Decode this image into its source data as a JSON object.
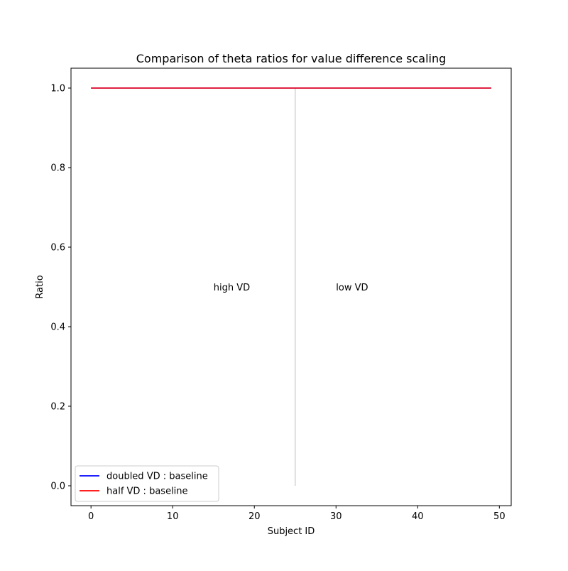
{
  "chart_data": {
    "type": "line",
    "title": "Comparison of theta ratios for value difference scaling",
    "xlabel": "Subject ID",
    "ylabel": "Ratio",
    "xlim": [
      -2.45,
      51.45
    ],
    "ylim": [
      -0.05,
      1.05
    ],
    "xticks": [
      0,
      10,
      20,
      30,
      40,
      50
    ],
    "yticks": [
      0.0,
      0.2,
      0.4,
      0.6,
      0.8,
      1.0
    ],
    "xtick_labels": [
      "0",
      "10",
      "20",
      "30",
      "40",
      "50"
    ],
    "ytick_labels": [
      "0.0",
      "0.2",
      "0.4",
      "0.6",
      "0.8",
      "1.0"
    ],
    "grid": false,
    "legend_position": "lower-left",
    "series": [
      {
        "name": "doubled VD : baseline",
        "color": "#0000ff",
        "x": [
          0,
          49
        ],
        "y": [
          1.0,
          1.0
        ]
      },
      {
        "name": "half VD : baseline",
        "color": "#ff0000",
        "x": [
          0,
          49
        ],
        "y": [
          1.0,
          1.0
        ]
      }
    ],
    "vline": {
      "x": 25,
      "y_from": 0.0,
      "y_to": 1.0,
      "color": "#d3d3d3"
    },
    "annotations": [
      {
        "text": "high VD",
        "x": 15,
        "y": 0.5
      },
      {
        "text": "low VD",
        "x": 30,
        "y": 0.5
      }
    ]
  }
}
